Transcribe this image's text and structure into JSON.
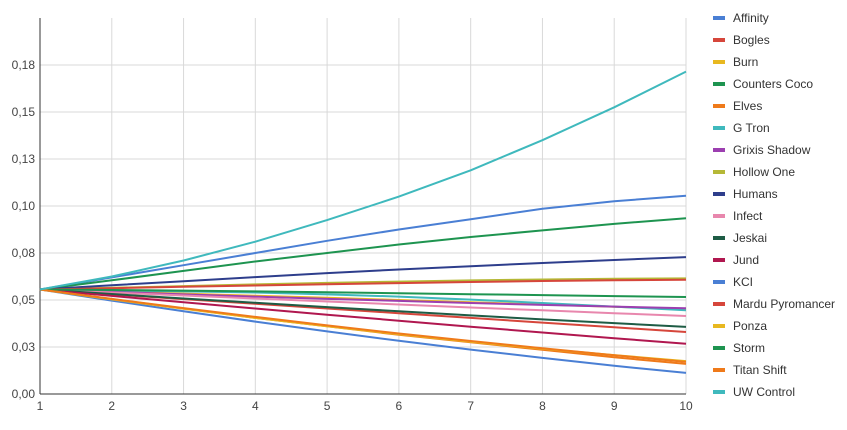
{
  "chart_data": {
    "type": "line",
    "title": "",
    "xlabel": "",
    "ylabel": "",
    "x": [
      1,
      2,
      3,
      4,
      5,
      6,
      7,
      8,
      9,
      10
    ],
    "xlim": [
      1,
      10
    ],
    "ylim": [
      0,
      0.2
    ],
    "y_ticks": [
      {
        "value": 0,
        "label": "0,00"
      },
      {
        "value": 0.025,
        "label": "0,03"
      },
      {
        "value": 0.05,
        "label": "0,05"
      },
      {
        "value": 0.075,
        "label": "0,08"
      },
      {
        "value": 0.1,
        "label": "0,10"
      },
      {
        "value": 0.125,
        "label": "0,13"
      },
      {
        "value": 0.15,
        "label": "0,15"
      },
      {
        "value": 0.175,
        "label": "0,18"
      }
    ],
    "x_ticks": [
      "1",
      "2",
      "3",
      "4",
      "5",
      "6",
      "7",
      "8",
      "9",
      "10"
    ],
    "grid": true,
    "legend_position": "right",
    "series": [
      {
        "name": "Affinity",
        "color": "#4a7fd4",
        "values": [
          0.0556,
          0.062,
          0.0685,
          0.075,
          0.0815,
          0.0875,
          0.093,
          0.0985,
          0.1025,
          0.1055
        ]
      },
      {
        "name": "Bogles",
        "color": "#d6463b",
        "values": [
          0.0556,
          0.053,
          0.0505,
          0.048,
          0.0455,
          0.043,
          0.0405,
          0.038,
          0.0355,
          0.033
        ]
      },
      {
        "name": "Burn",
        "color": "#e8b820",
        "values": [
          0.0556,
          0.0545,
          0.0534,
          0.0523,
          0.0512,
          0.05,
          0.0488,
          0.0476,
          0.0464,
          0.0452
        ]
      },
      {
        "name": "Counters Coco",
        "color": "#1e9450",
        "values": [
          0.0556,
          0.0605,
          0.0655,
          0.0705,
          0.075,
          0.0795,
          0.0835,
          0.087,
          0.0905,
          0.0935
        ]
      },
      {
        "name": "Elves",
        "color": "#ef7a1a",
        "values": [
          0.0556,
          0.0505,
          0.0455,
          0.0405,
          0.036,
          0.0315,
          0.0275,
          0.0235,
          0.0195,
          0.016
        ]
      },
      {
        "name": "G Tron",
        "color": "#3fb9bd",
        "values": [
          0.0556,
          0.0551,
          0.0546,
          0.054,
          0.053,
          0.0518,
          0.0502,
          0.0484,
          0.0465,
          0.0445
        ]
      },
      {
        "name": "Grixis Shadow",
        "color": "#9c3fb0",
        "values": [
          0.0556,
          0.0543,
          0.053,
          0.0518,
          0.0506,
          0.0495,
          0.0484,
          0.0474,
          0.0465,
          0.0456
        ]
      },
      {
        "name": "Hollow One",
        "color": "#b5b836",
        "values": [
          0.0556,
          0.0565,
          0.0574,
          0.0583,
          0.0591,
          0.0598,
          0.0604,
          0.0609,
          0.0613,
          0.0615
        ]
      },
      {
        "name": "Humans",
        "color": "#2e3e8c",
        "values": [
          0.0556,
          0.0578,
          0.06,
          0.0622,
          0.0643,
          0.0662,
          0.068,
          0.0697,
          0.0713,
          0.0728
        ]
      },
      {
        "name": "Infect",
        "color": "#e887ad",
        "values": [
          0.0556,
          0.054,
          0.0524,
          0.0508,
          0.0492,
          0.0476,
          0.046,
          0.0445,
          0.043,
          0.0415
        ]
      },
      {
        "name": "Jeskai",
        "color": "#1e5c45",
        "values": [
          0.0556,
          0.0532,
          0.0508,
          0.0485,
          0.0462,
          0.044,
          0.0418,
          0.0397,
          0.0377,
          0.0357
        ]
      },
      {
        "name": "Jund",
        "color": "#b0174f",
        "values": [
          0.0556,
          0.0522,
          0.0488,
          0.0455,
          0.0422,
          0.039,
          0.0358,
          0.0327,
          0.0297,
          0.0267
        ]
      },
      {
        "name": "KCI",
        "color": "#4a7fd4",
        "values": [
          0.0556,
          0.0497,
          0.044,
          0.0385,
          0.0333,
          0.0283,
          0.0236,
          0.0192,
          0.015,
          0.0112
        ]
      },
      {
        "name": "Mardu Pyromancer",
        "color": "#d6463b",
        "values": [
          0.0556,
          0.0563,
          0.057,
          0.0577,
          0.0584,
          0.059,
          0.0596,
          0.0601,
          0.0605,
          0.0608
        ]
      },
      {
        "name": "Ponza",
        "color": "#e8b820",
        "values": [
          0.0556,
          0.0503,
          0.0453,
          0.0405,
          0.036,
          0.0318,
          0.0278,
          0.0241,
          0.0207,
          0.0175
        ]
      },
      {
        "name": "Storm",
        "color": "#1e9450",
        "values": [
          0.0556,
          0.0553,
          0.055,
          0.0546,
          0.0541,
          0.0536,
          0.0531,
          0.0526,
          0.0521,
          0.0516
        ]
      },
      {
        "name": "Titan Shift",
        "color": "#ef7a1a",
        "values": [
          0.0556,
          0.0506,
          0.0457,
          0.041,
          0.0365,
          0.0322,
          0.0282,
          0.0243,
          0.0206,
          0.0171
        ]
      },
      {
        "name": "UW Control",
        "color": "#3fb9bd",
        "values": [
          0.0556,
          0.0625,
          0.071,
          0.081,
          0.0925,
          0.105,
          0.119,
          0.135,
          0.1525,
          0.1715
        ]
      }
    ]
  }
}
